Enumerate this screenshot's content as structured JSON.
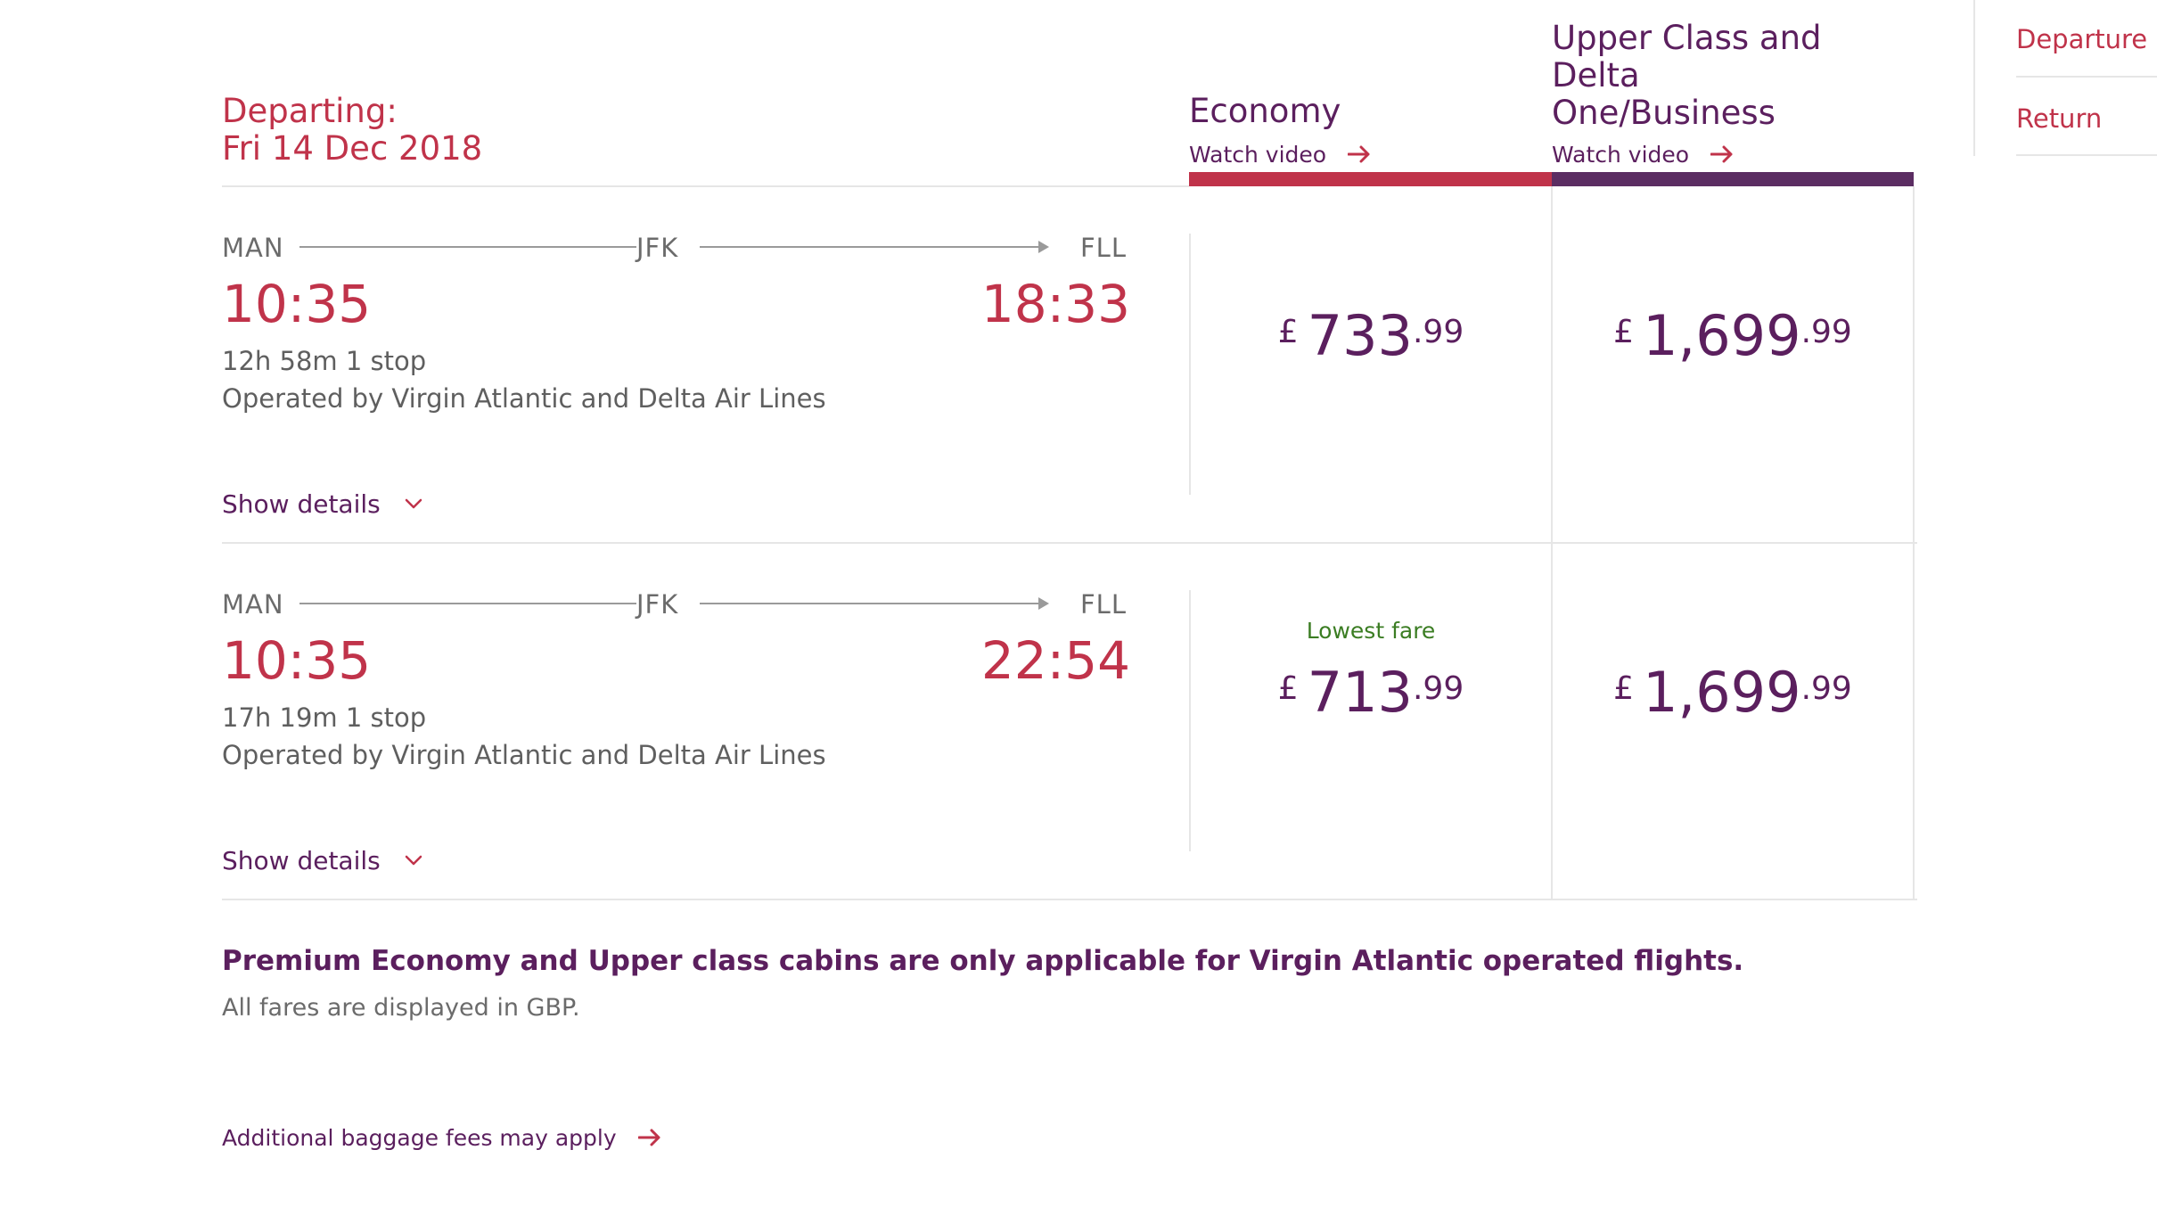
{
  "header": {
    "departing_label": "Departing:",
    "departing_date": "Fri 14 Dec 2018"
  },
  "cabins": [
    {
      "title_lines": [
        "Economy"
      ],
      "watch_video": "Watch video",
      "bar_color": "#c0334a"
    },
    {
      "title_lines": [
        "Upper Class and",
        "Delta",
        "One/Business"
      ],
      "watch_video": "Watch video",
      "bar_color": "#5b2d62"
    }
  ],
  "sidenav": {
    "items": [
      "Departure",
      "Return"
    ]
  },
  "flights": [
    {
      "origin": "MAN",
      "via": "JFK",
      "destination": "FLL",
      "depart_time": "10:35",
      "arrive_time": "18:33",
      "duration": "12h 58m 1 stop",
      "operated_by": "Operated by Virgin Atlantic and Delta Air Lines",
      "show_details": "Show details",
      "economy": {
        "badge": "",
        "currency": "£",
        "amount": "733",
        "decimals": ".99"
      },
      "upper": {
        "currency": "£",
        "amount": "1,699",
        "decimals": ".99"
      }
    },
    {
      "origin": "MAN",
      "via": "JFK",
      "destination": "FLL",
      "depart_time": "10:35",
      "arrive_time": "22:54",
      "duration": "17h 19m 1 stop",
      "operated_by": "Operated by Virgin Atlantic and Delta Air Lines",
      "show_details": "Show details",
      "economy": {
        "badge": "Lowest fare",
        "currency": "£",
        "amount": "713",
        "decimals": ".99"
      },
      "upper": {
        "currency": "£",
        "amount": "1,699",
        "decimals": ".99"
      }
    }
  ],
  "footer": {
    "cabin_note": "Premium Economy and Upper class cabins are only applicable for Virgin Atlantic operated flights.",
    "currency_note": "All fares are displayed in GBP.",
    "baggage_link": "Additional baggage fees may apply"
  },
  "colors": {
    "accent_red": "#c0334a",
    "brand_purple": "#5b1f5e",
    "lowest_fare_green": "#3b7d23"
  }
}
